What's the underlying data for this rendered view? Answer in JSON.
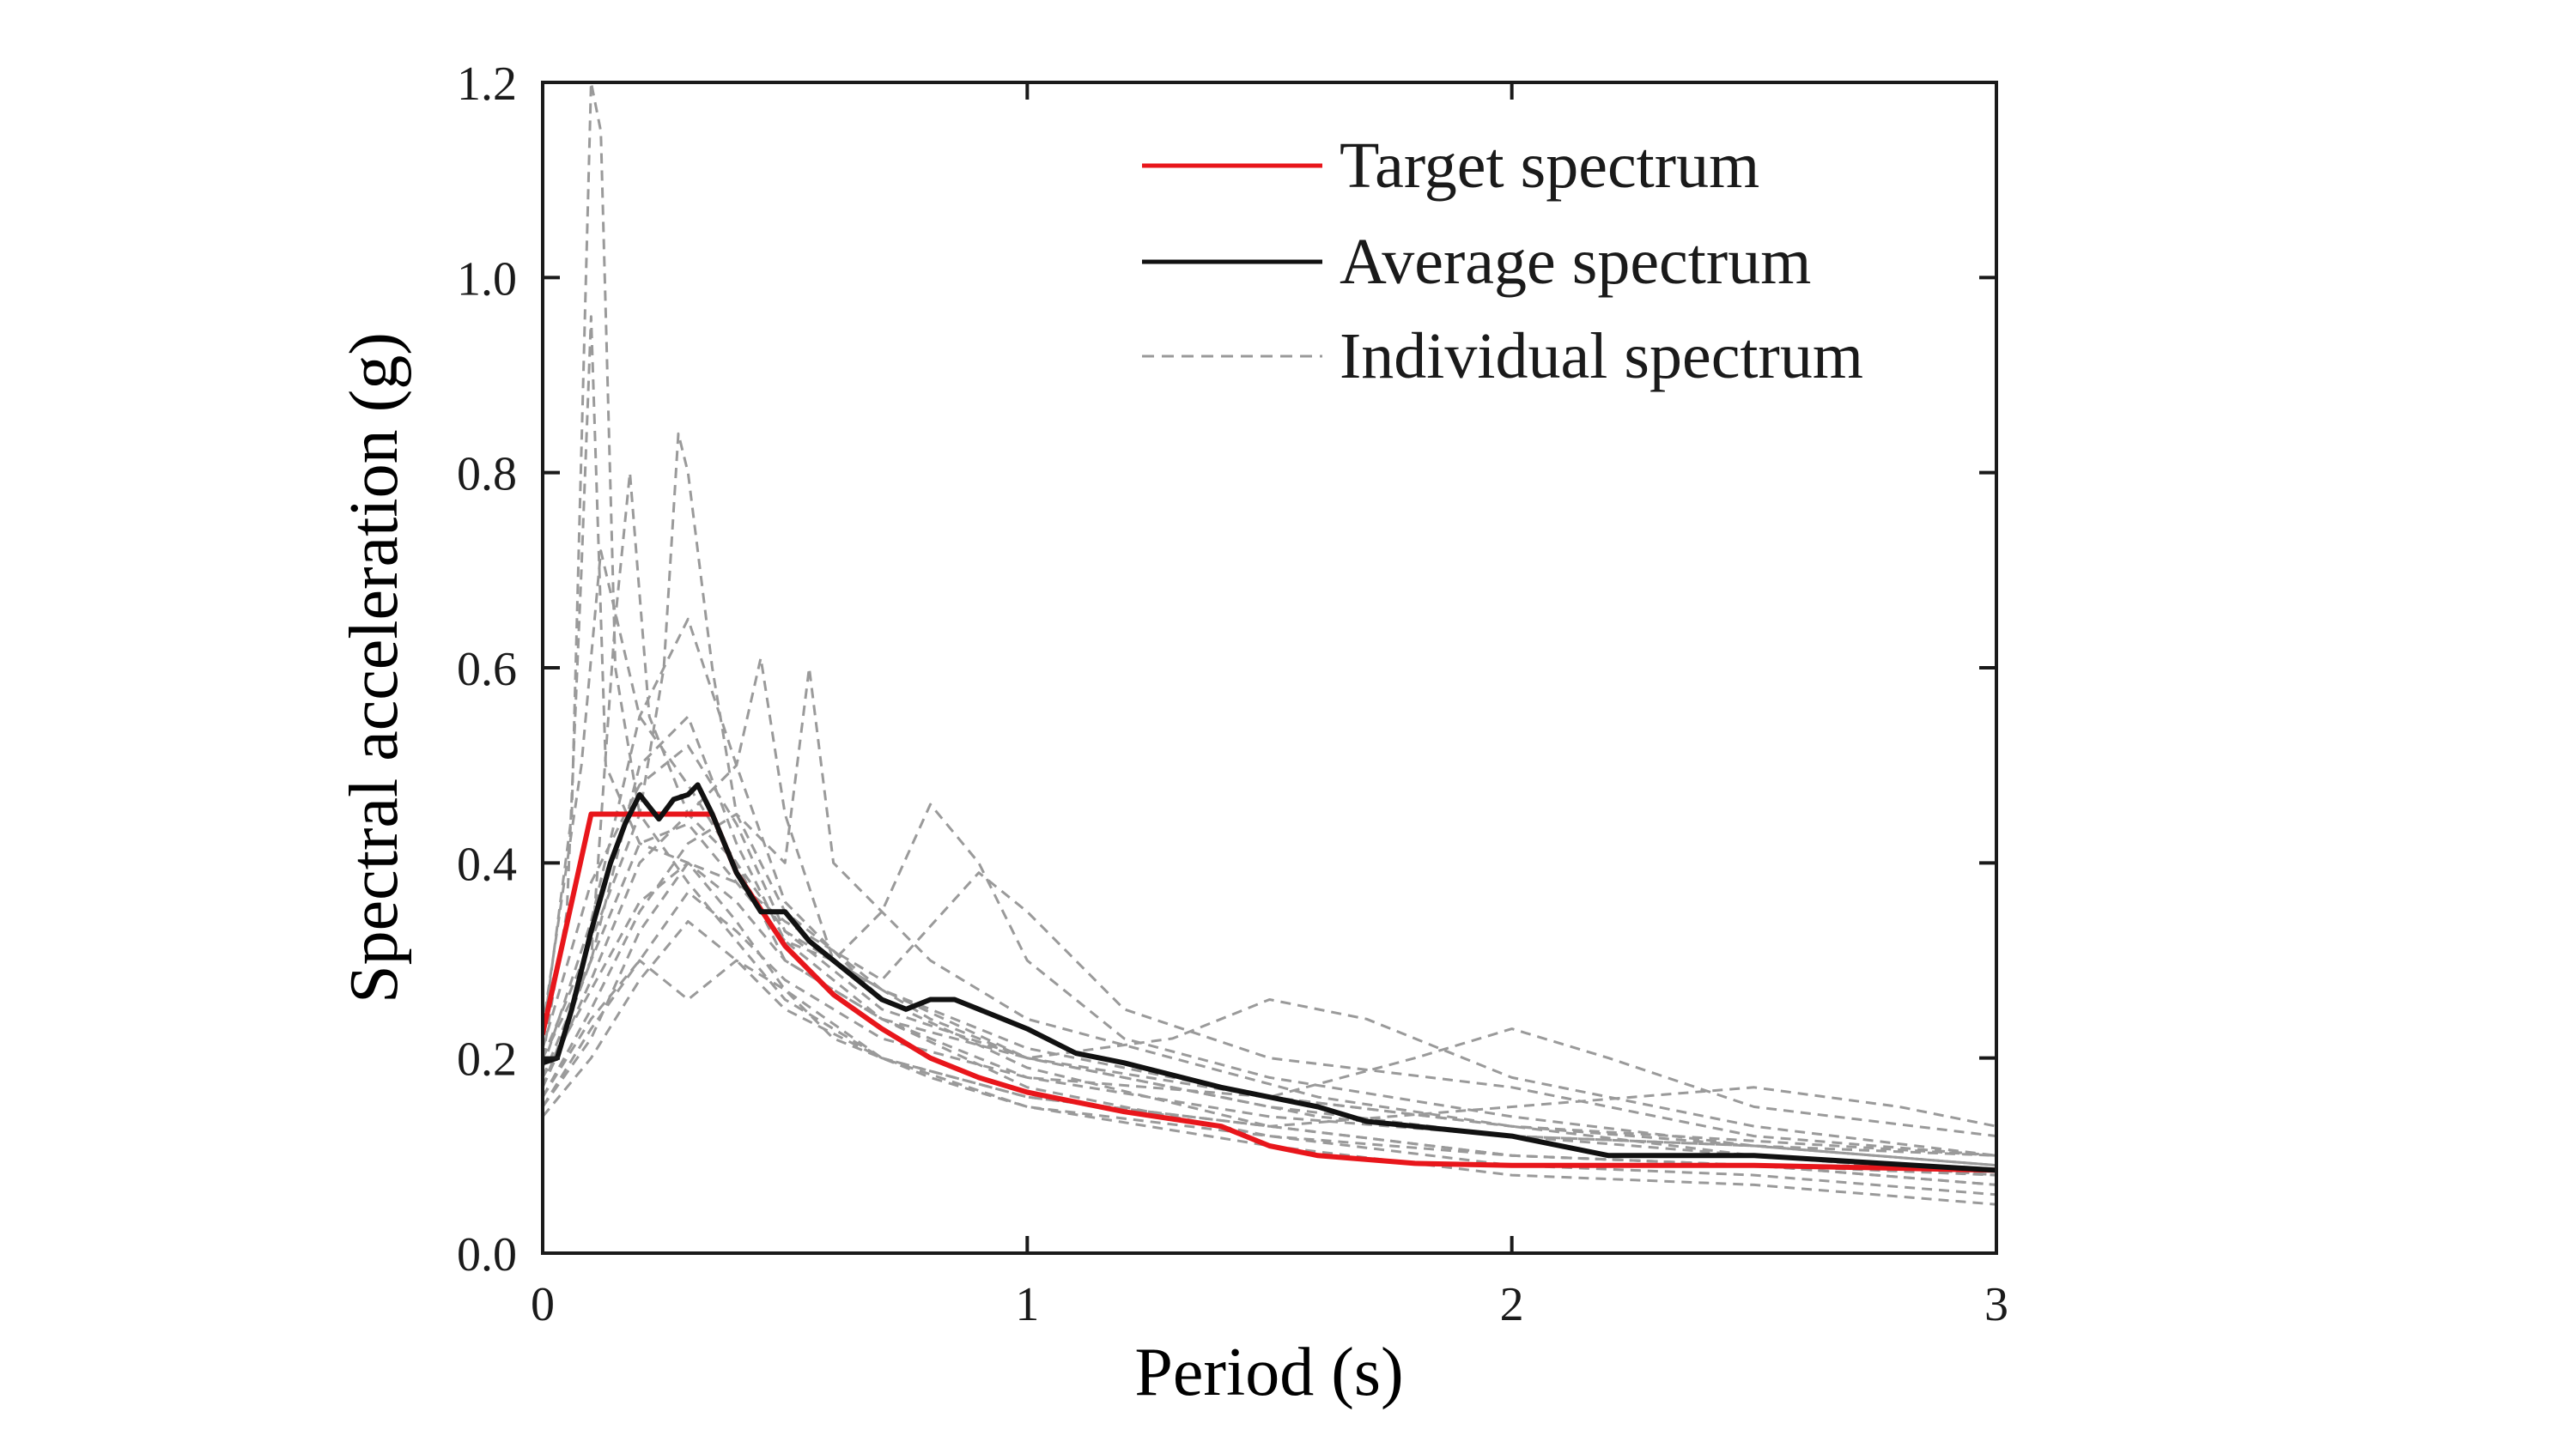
{
  "chart_data": {
    "type": "line",
    "title": "",
    "xlabel": "Period (s)",
    "ylabel": "Spectral acceleration (g)",
    "xlim": [
      0,
      3
    ],
    "ylim": [
      0,
      1.2
    ],
    "xticks": [
      0,
      1,
      2,
      3
    ],
    "xtick_labels": [
      "0",
      "1",
      "2",
      "3"
    ],
    "yticks": [
      0.0,
      0.2,
      0.4,
      0.6,
      0.8,
      1.0,
      1.2
    ],
    "ytick_labels": [
      "0.0",
      "0.2",
      "0.4",
      "0.6",
      "0.8",
      "1.0",
      "1.2"
    ],
    "grid": false,
    "legend_position": "top-right",
    "colors": {
      "target": "#e8161b",
      "average": "#111111",
      "individual": "#9a9a9a"
    },
    "series": [
      {
        "name": "Target spectrum",
        "style": "solid",
        "color": "#e8161b",
        "x": [
          0,
          0.1,
          0.35,
          0.4,
          0.5,
          0.6,
          0.7,
          0.8,
          0.9,
          1.0,
          1.2,
          1.4,
          1.5,
          1.6,
          1.8,
          2.0,
          2.5,
          3.0
        ],
        "y": [
          0.225,
          0.45,
          0.45,
          0.39,
          0.315,
          0.265,
          0.23,
          0.2,
          0.18,
          0.165,
          0.145,
          0.13,
          0.11,
          0.1,
          0.092,
          0.09,
          0.09,
          0.085
        ]
      },
      {
        "name": "Average spectrum",
        "style": "solid",
        "color": "#111111",
        "x": [
          0,
          0.03,
          0.06,
          0.1,
          0.14,
          0.17,
          0.2,
          0.24,
          0.27,
          0.3,
          0.32,
          0.35,
          0.4,
          0.45,
          0.5,
          0.55,
          0.6,
          0.7,
          0.75,
          0.8,
          0.85,
          0.9,
          0.95,
          1.0,
          1.1,
          1.2,
          1.4,
          1.6,
          1.7,
          1.8,
          2.0,
          2.2,
          2.5,
          3.0
        ],
        "y": [
          0.195,
          0.2,
          0.25,
          0.33,
          0.4,
          0.44,
          0.47,
          0.445,
          0.465,
          0.47,
          0.48,
          0.45,
          0.39,
          0.35,
          0.35,
          0.32,
          0.3,
          0.26,
          0.25,
          0.26,
          0.26,
          0.25,
          0.24,
          0.23,
          0.205,
          0.195,
          0.17,
          0.15,
          0.135,
          0.13,
          0.12,
          0.1,
          0.1,
          0.085
        ]
      }
    ],
    "individual_series": {
      "name": "Individual spectrum",
      "style": "dashed",
      "color": "#9a9a9a",
      "curves": [
        {
          "x": [
            0,
            0.05,
            0.08,
            0.1,
            0.13,
            0.2,
            0.3,
            0.4,
            0.5,
            0.6,
            0.8,
            1.0,
            1.5,
            2.0,
            2.5,
            3.0
          ],
          "y": [
            0.2,
            0.35,
            0.7,
            0.96,
            0.5,
            0.42,
            0.4,
            0.34,
            0.27,
            0.22,
            0.18,
            0.15,
            0.12,
            0.1,
            0.09,
            0.07
          ]
        },
        {
          "x": [
            0,
            0.06,
            0.1,
            0.12,
            0.15,
            0.2,
            0.3,
            0.4,
            0.5,
            0.7,
            1.0,
            1.5,
            2.0,
            3.0
          ],
          "y": [
            0.22,
            0.45,
            1.2,
            1.15,
            0.6,
            0.45,
            0.38,
            0.32,
            0.26,
            0.2,
            0.16,
            0.13,
            0.1,
            0.08
          ]
        },
        {
          "x": [
            0,
            0.1,
            0.15,
            0.18,
            0.22,
            0.3,
            0.4,
            0.5,
            0.7,
            1.0,
            1.5,
            2.0,
            3.0
          ],
          "y": [
            0.18,
            0.3,
            0.65,
            0.8,
            0.55,
            0.45,
            0.4,
            0.3,
            0.24,
            0.18,
            0.14,
            0.12,
            0.1
          ]
        },
        {
          "x": [
            0,
            0.1,
            0.2,
            0.25,
            0.28,
            0.3,
            0.35,
            0.4,
            0.5,
            0.7,
            1.0,
            1.5,
            2.0,
            3.0
          ],
          "y": [
            0.2,
            0.32,
            0.45,
            0.6,
            0.84,
            0.8,
            0.6,
            0.45,
            0.35,
            0.27,
            0.2,
            0.16,
            0.13,
            0.1
          ]
        },
        {
          "x": [
            0,
            0.1,
            0.2,
            0.3,
            0.4,
            0.45,
            0.5,
            0.6,
            0.8,
            1.0,
            1.3,
            1.6,
            2.0,
            2.5,
            3.0
          ],
          "y": [
            0.17,
            0.28,
            0.4,
            0.45,
            0.5,
            0.61,
            0.45,
            0.3,
            0.24,
            0.2,
            0.17,
            0.14,
            0.12,
            0.11,
            0.09
          ]
        },
        {
          "x": [
            0,
            0.1,
            0.2,
            0.3,
            0.4,
            0.5,
            0.55,
            0.6,
            0.8,
            1.0,
            1.3,
            1.6,
            2.0,
            2.5,
            3.0
          ],
          "y": [
            0.16,
            0.25,
            0.35,
            0.42,
            0.45,
            0.4,
            0.6,
            0.4,
            0.3,
            0.24,
            0.2,
            0.16,
            0.13,
            0.1,
            0.08
          ]
        },
        {
          "x": [
            0,
            0.1,
            0.2,
            0.3,
            0.4,
            0.5,
            0.6,
            0.7,
            0.8,
            0.9,
            1.0,
            1.2,
            1.5,
            2.0,
            2.5,
            3.0
          ],
          "y": [
            0.2,
            0.3,
            0.42,
            0.44,
            0.38,
            0.32,
            0.3,
            0.35,
            0.46,
            0.4,
            0.3,
            0.22,
            0.18,
            0.14,
            0.11,
            0.09
          ]
        },
        {
          "x": [
            0,
            0.1,
            0.2,
            0.3,
            0.4,
            0.5,
            0.7,
            0.9,
            1.0,
            1.2,
            1.5,
            2.0,
            2.5,
            3.0
          ],
          "y": [
            0.15,
            0.22,
            0.33,
            0.4,
            0.38,
            0.34,
            0.28,
            0.39,
            0.35,
            0.25,
            0.2,
            0.17,
            0.12,
            0.1
          ]
        },
        {
          "x": [
            0,
            0.1,
            0.2,
            0.3,
            0.4,
            0.5,
            0.7,
            1.0,
            1.3,
            1.5,
            1.7,
            2.0,
            2.5,
            3.0
          ],
          "y": [
            0.18,
            0.27,
            0.36,
            0.4,
            0.36,
            0.3,
            0.24,
            0.2,
            0.22,
            0.26,
            0.24,
            0.18,
            0.13,
            0.1
          ]
        },
        {
          "x": [
            0,
            0.1,
            0.2,
            0.3,
            0.4,
            0.5,
            0.7,
            1.0,
            1.5,
            1.8,
            2.0,
            2.2,
            2.5,
            3.0
          ],
          "y": [
            0.16,
            0.24,
            0.3,
            0.37,
            0.33,
            0.28,
            0.22,
            0.18,
            0.16,
            0.2,
            0.23,
            0.2,
            0.15,
            0.12
          ]
        },
        {
          "x": [
            0,
            0.1,
            0.2,
            0.3,
            0.4,
            0.5,
            0.7,
            1.0,
            1.5,
            2.0,
            2.5,
            2.8,
            3.0
          ],
          "y": [
            0.14,
            0.2,
            0.28,
            0.34,
            0.3,
            0.25,
            0.2,
            0.16,
            0.13,
            0.15,
            0.17,
            0.15,
            0.13
          ]
        },
        {
          "x": [
            0,
            0.1,
            0.2,
            0.3,
            0.4,
            0.5,
            0.7,
            1.0,
            1.5,
            2.0,
            2.5,
            3.0
          ],
          "y": [
            0.15,
            0.23,
            0.3,
            0.26,
            0.3,
            0.27,
            0.2,
            0.15,
            0.11,
            0.08,
            0.07,
            0.05
          ]
        },
        {
          "x": [
            0,
            0.1,
            0.2,
            0.3,
            0.4,
            0.5,
            0.7,
            1.0,
            1.5,
            2.0,
            2.5,
            3.0
          ],
          "y": [
            0.17,
            0.3,
            0.5,
            0.55,
            0.42,
            0.32,
            0.24,
            0.17,
            0.12,
            0.09,
            0.08,
            0.06
          ]
        },
        {
          "x": [
            0,
            0.1,
            0.2,
            0.3,
            0.4,
            0.5,
            0.7,
            1.0,
            1.5,
            2.0,
            2.5,
            3.0
          ],
          "y": [
            0.19,
            0.34,
            0.55,
            0.65,
            0.5,
            0.36,
            0.26,
            0.19,
            0.13,
            0.1,
            0.09,
            0.07
          ]
        },
        {
          "x": [
            0,
            0.1,
            0.2,
            0.3,
            0.4,
            0.5,
            0.7,
            1.0,
            1.5,
            2.0,
            2.5,
            3.0
          ],
          "y": [
            0.21,
            0.38,
            0.48,
            0.52,
            0.44,
            0.33,
            0.25,
            0.2,
            0.15,
            0.12,
            0.1,
            0.08
          ]
        },
        {
          "x": [
            0,
            0.08,
            0.12,
            0.2,
            0.3,
            0.4,
            0.5,
            0.7,
            1.0,
            1.5,
            2.0,
            2.5,
            3.0
          ],
          "y": [
            0.23,
            0.5,
            0.72,
            0.55,
            0.48,
            0.4,
            0.33,
            0.27,
            0.21,
            0.16,
            0.13,
            0.11,
            0.09
          ]
        }
      ]
    },
    "legend": [
      {
        "label": "Target spectrum",
        "style": "solid",
        "color": "#e8161b"
      },
      {
        "label": "Average spectrum",
        "style": "solid",
        "color": "#111111"
      },
      {
        "label": "Individual spectrum",
        "style": "dashed",
        "color": "#9a9a9a"
      }
    ]
  }
}
